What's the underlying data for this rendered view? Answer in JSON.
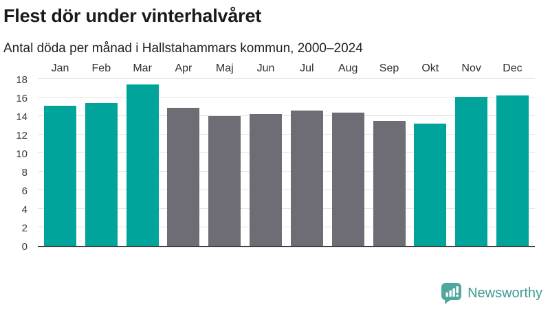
{
  "header": {
    "title": "Flest dör under vinterhalvåret",
    "subtitle": "Antal döda per månad i Hallstahammars kommun, 2000–2024"
  },
  "footer": {
    "brand": "Newsworthy",
    "logo_icon": "bar-chart-speech-bubble-icon",
    "brand_text_color": "#3c9c93",
    "brand_bubble_color": "#4fa79e"
  },
  "chart_data": {
    "type": "bar",
    "title": "Flest dör under vinterhalvåret",
    "subtitle": "Antal döda per månad i Hallstahammars kommun, 2000–2024",
    "categories": [
      "Jan",
      "Feb",
      "Mar",
      "Apr",
      "Maj",
      "Jun",
      "Jul",
      "Aug",
      "Sep",
      "Okt",
      "Nov",
      "Dec"
    ],
    "values": [
      15.1,
      15.4,
      17.4,
      14.9,
      14.0,
      14.2,
      14.6,
      14.4,
      13.5,
      13.2,
      16.1,
      16.2
    ],
    "highlighted_categories": [
      "Jan",
      "Feb",
      "Mar",
      "Okt",
      "Nov",
      "Dec"
    ],
    "colors": {
      "highlight": "#00a49a",
      "default": "#6e6c74"
    },
    "xlabel": "",
    "ylabel": "",
    "ylim": [
      0,
      18
    ],
    "yticks": [
      0,
      2,
      4,
      6,
      8,
      10,
      12,
      14,
      16,
      18
    ],
    "grid": true,
    "legend": false
  }
}
